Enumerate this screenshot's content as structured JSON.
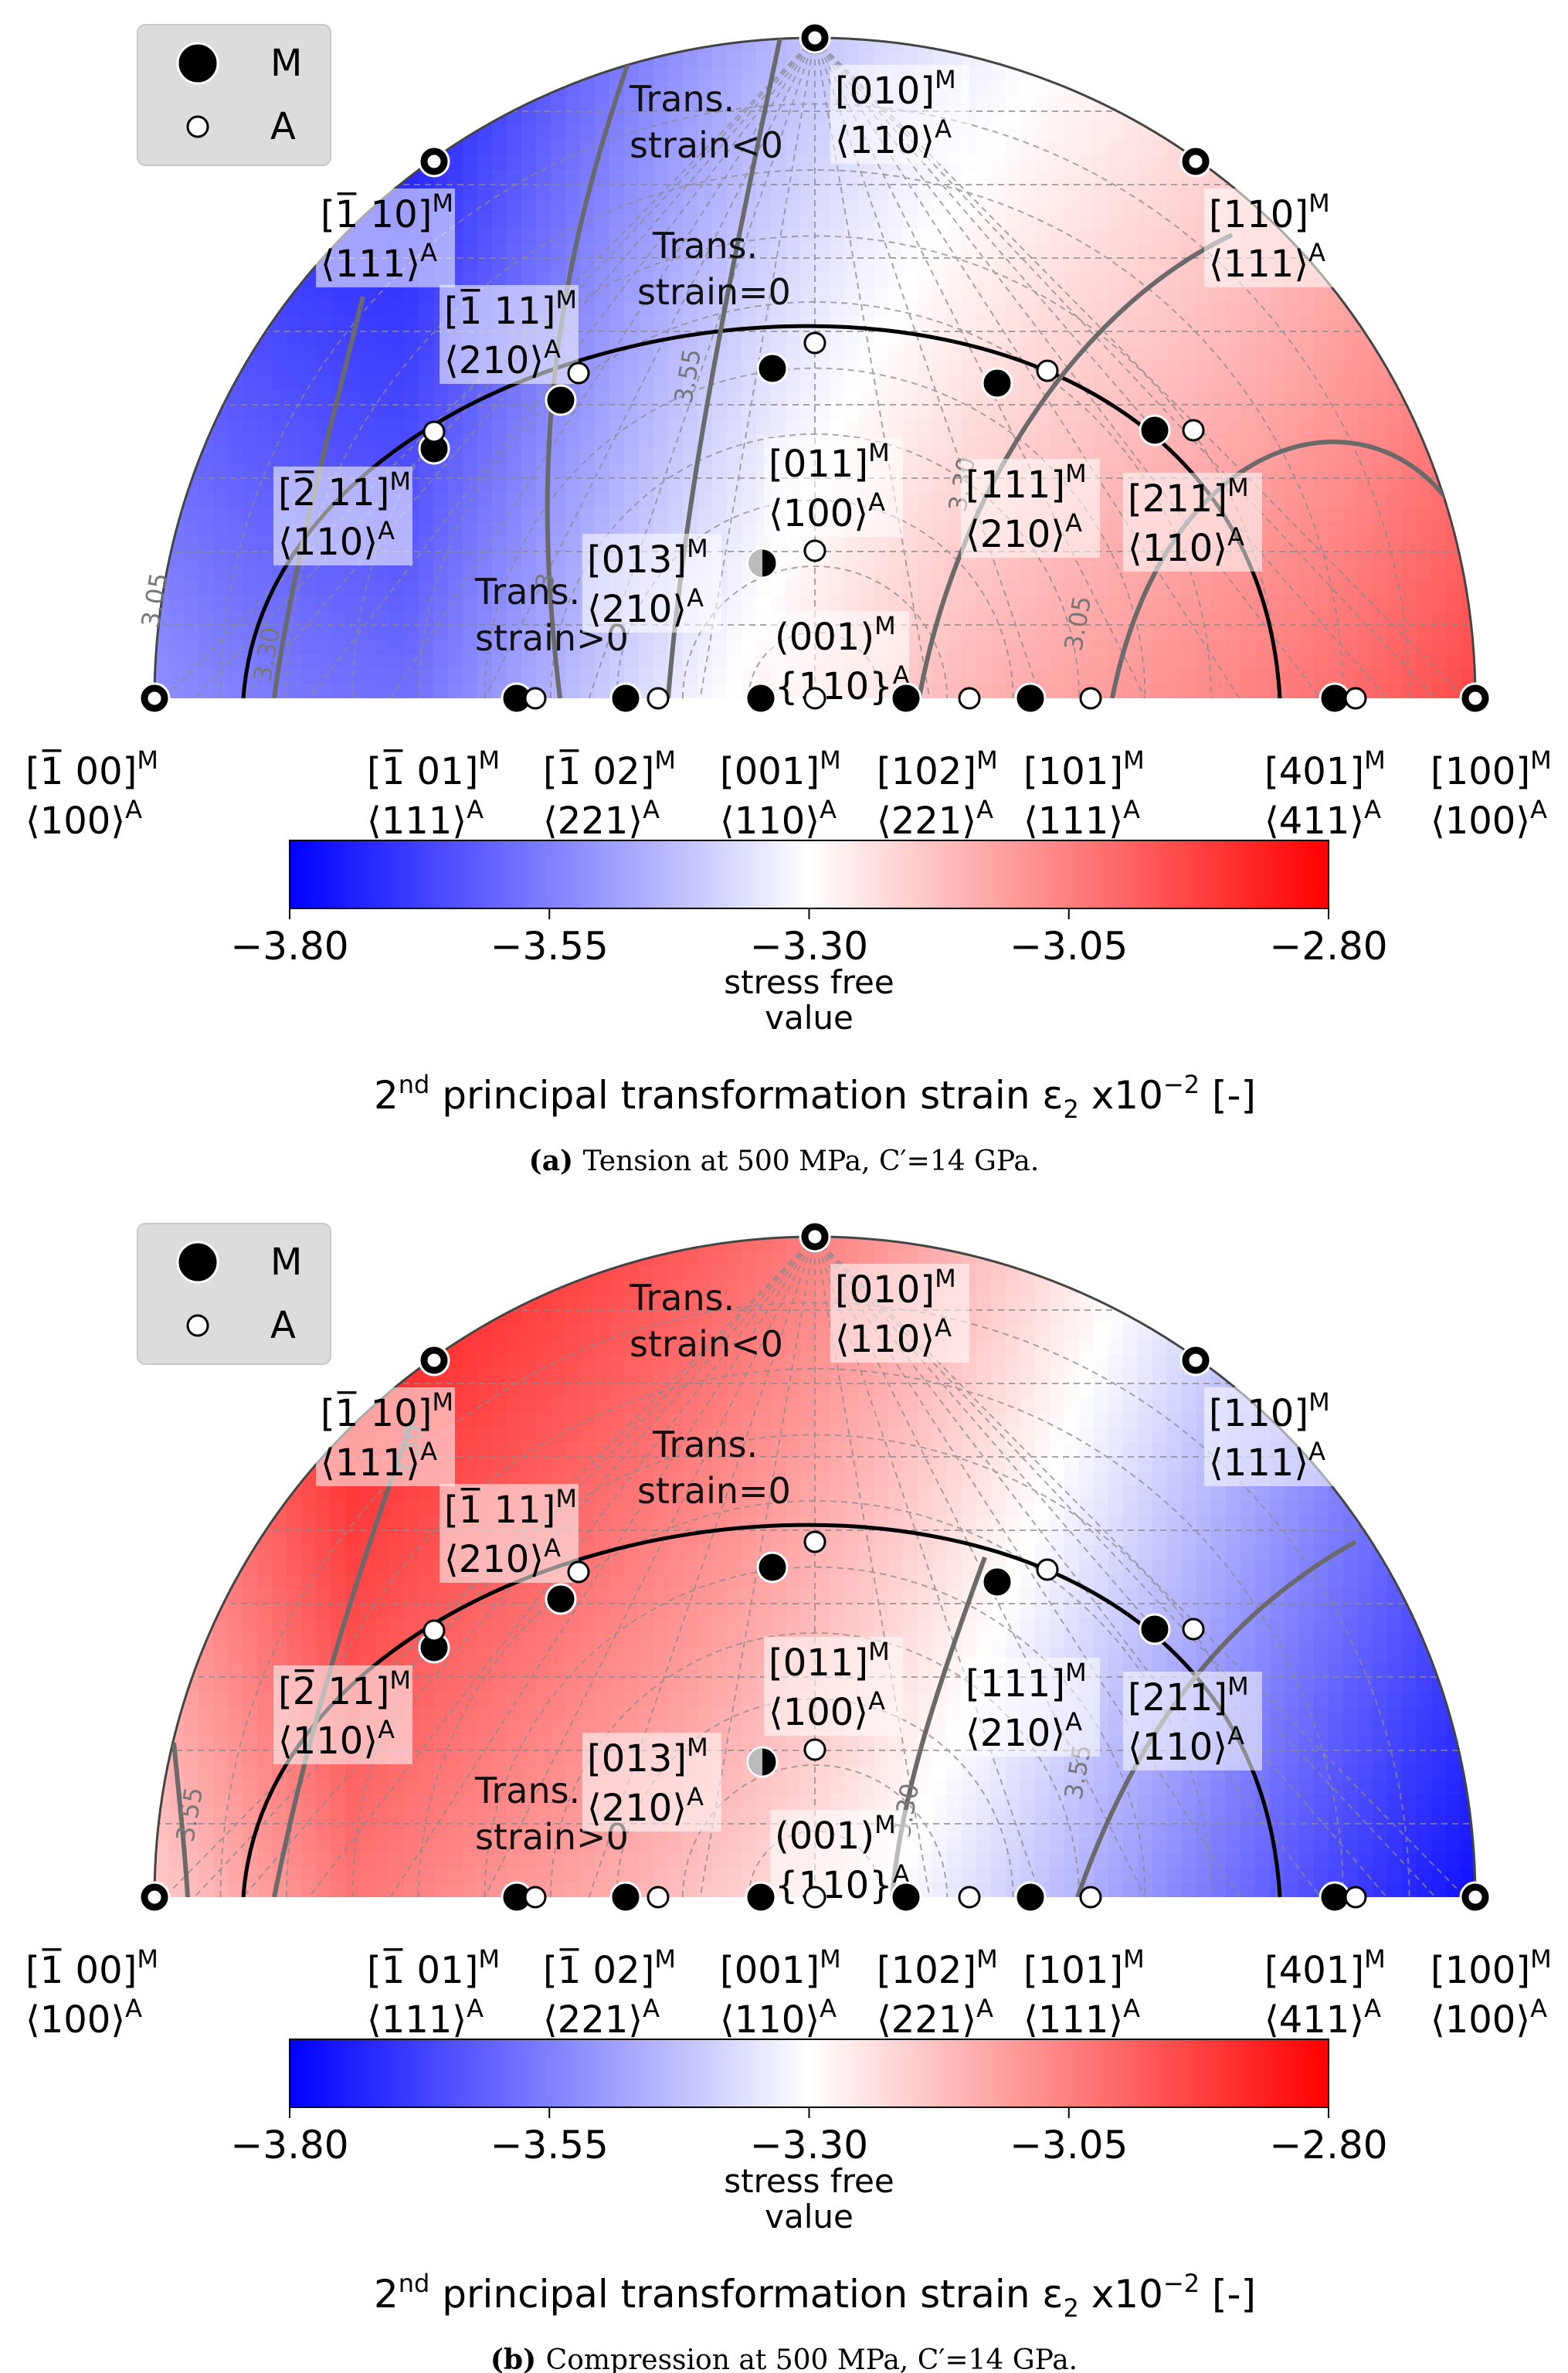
{
  "chart_data": [
    {
      "type": "heatmap",
      "subtype": "stereographic-pole-figure",
      "panel": "a",
      "caption_prefix": "(a)",
      "caption_text": "Tension at 500 MPa, C′=14 GPa.",
      "colormap": "bwr",
      "field": "tension",
      "colorbar": {
        "min": -3.8,
        "max": -2.8,
        "ticks": [
          "−3.80",
          "−3.55",
          "−3.30",
          "−3.05",
          "−2.80"
        ],
        "tick_values": [
          -3.8,
          -3.55,
          -3.3,
          -3.05,
          -2.8
        ],
        "center_note_line1": "stress free",
        "center_note_line2": "value",
        "title_main": "2",
        "title_sup": "nd",
        "title_rest": " principal transformation strain ",
        "title_symbol": "ε",
        "title_sub": "2",
        "title_tail": " x10",
        "title_exp": "−2",
        "title_end": " [-]"
      },
      "contour_labels": [
        "3.05",
        "3.30",
        "3.55",
        "3",
        "3.30",
        "3.05"
      ],
      "annotations": {
        "neg_1": "Trans.",
        "neg_2": "strain<0",
        "zero_1": "Trans.",
        "zero_2": "strain=0",
        "pos_1": "Trans.",
        "pos_2": "strain>0"
      }
    },
    {
      "type": "heatmap",
      "subtype": "stereographic-pole-figure",
      "panel": "b",
      "caption_prefix": "(b)",
      "caption_text": "Compression at 500 MPa, C′=14 GPa.",
      "colormap": "bwr",
      "field": "compression",
      "colorbar": {
        "min": -3.8,
        "max": -2.8,
        "ticks": [
          "−3.80",
          "−3.55",
          "−3.30",
          "−3.05",
          "−2.80"
        ],
        "tick_values": [
          -3.8,
          -3.55,
          -3.3,
          -3.05,
          -2.8
        ],
        "center_note_line1": "stress free",
        "center_note_line2": "value",
        "title_main": "2",
        "title_sup": "nd",
        "title_rest": " principal transformation strain ",
        "title_symbol": "ε",
        "title_sub": "2",
        "title_tail": " x10",
        "title_exp": "−2",
        "title_end": " [-]"
      },
      "contour_labels": [
        "3.30",
        "3.55",
        "3.30",
        "3.55"
      ],
      "annotations": {
        "neg_1": "Trans.",
        "neg_2": "strain<0",
        "zero_1": "Trans.",
        "zero_2": "strain=0",
        "pos_1": "Trans.",
        "pos_2": "strain>0"
      }
    }
  ],
  "legend": {
    "placement": "top-left",
    "entries": [
      {
        "marker": "filled-large",
        "label": "M"
      },
      {
        "marker": "open-small",
        "label": "A"
      }
    ]
  },
  "pole_labels": [
    {
      "id": "p010",
      "m": "[010]",
      "a": "⟨110⟩"
    },
    {
      "id": "pm110",
      "m": "[1̅ 10]",
      "a": "⟨111⟩"
    },
    {
      "id": "p110",
      "m": "[110]",
      "a": "⟨111⟩"
    },
    {
      "id": "pm111",
      "m": "[1̅ 11]",
      "a": "⟨210⟩"
    },
    {
      "id": "p011",
      "m": "[011]",
      "a": "⟨100⟩"
    },
    {
      "id": "p111",
      "m": "[111]",
      "a": "⟨210⟩"
    },
    {
      "id": "pm211",
      "m": "[2̅ 11]",
      "a": "⟨110⟩"
    },
    {
      "id": "p211",
      "m": "[211]",
      "a": "⟨110⟩"
    },
    {
      "id": "p013",
      "m": "[013]",
      "a": "⟨210⟩"
    },
    {
      "id": "p001",
      "m": "(001)",
      "a": "{110}"
    },
    {
      "id": "pm100",
      "m": "[1̅ 00]",
      "a": "⟨100⟩"
    },
    {
      "id": "pm101",
      "m": "[1̅ 01]",
      "a": "⟨111⟩"
    },
    {
      "id": "pm102",
      "m": "[1̅ 02]",
      "a": "⟨221⟩"
    },
    {
      "id": "p001b",
      "m": "[001]",
      "a": "⟨110⟩"
    },
    {
      "id": "p102",
      "m": "[102]",
      "a": "⟨221⟩"
    },
    {
      "id": "p101",
      "m": "[101]",
      "a": "⟨111⟩"
    },
    {
      "id": "p401",
      "m": "[401]",
      "a": "⟨411⟩"
    },
    {
      "id": "p100",
      "m": "[100]",
      "a": "⟨100⟩"
    }
  ],
  "sup_m": "M",
  "sup_a": "A"
}
